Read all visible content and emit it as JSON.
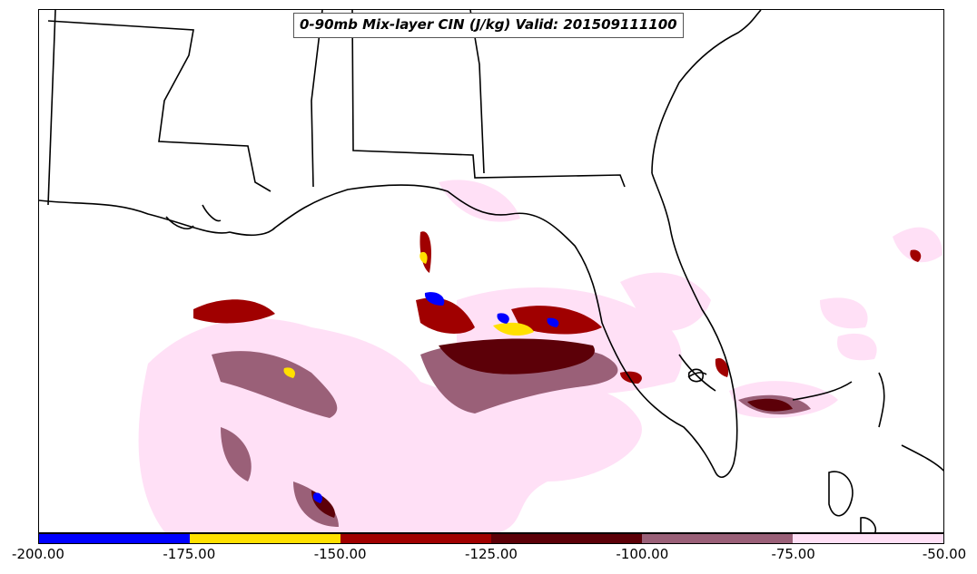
{
  "title": "0-90mb Mix-layer CIN (J/kg) Valid: 201509111100",
  "colorbar": {
    "segments": [
      {
        "from": -200,
        "to": -175,
        "color": "#0000ff"
      },
      {
        "from": -175,
        "to": -150,
        "color": "#ffe000"
      },
      {
        "from": -150,
        "to": -125,
        "color": "#a00000"
      },
      {
        "from": -125,
        "to": -100,
        "color": "#5c0008"
      },
      {
        "from": -100,
        "to": -75,
        "color": "#9a6078"
      },
      {
        "from": -75,
        "to": -50,
        "color": "#ffe0f6"
      }
    ],
    "tick_labels": [
      "-200.00",
      "-175.00",
      "-150.00",
      "-125.00",
      "-100.00",
      "-75.00",
      "-50.00"
    ]
  }
}
